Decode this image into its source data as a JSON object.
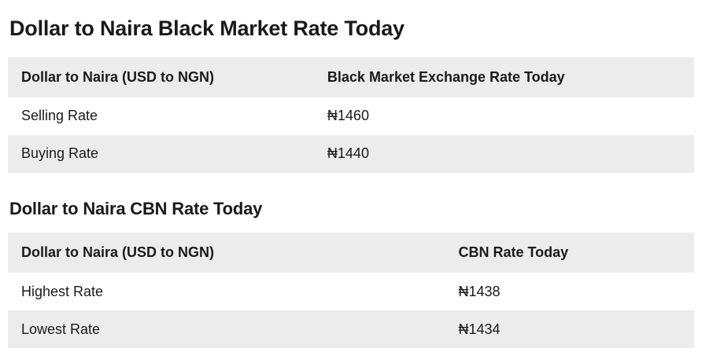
{
  "colors": {
    "row_alt_bg": "#ececec",
    "text": "#1a1a1a",
    "page_bg": "#ffffff"
  },
  "sections": [
    {
      "heading": "Dollar to Naira Black Market Rate Today",
      "table": {
        "headers": [
          "Dollar to Naira (USD to NGN)",
          "Black Market Exchange Rate Today"
        ],
        "rows": [
          {
            "label": "Selling Rate",
            "value": "₦1460"
          },
          {
            "label": "Buying Rate",
            "value": "₦1440"
          }
        ]
      }
    },
    {
      "heading": "Dollar to Naira CBN Rate Today",
      "table": {
        "headers": [
          "Dollar to Naira (USD to NGN)",
          "CBN Rate Today"
        ],
        "rows": [
          {
            "label": "Highest Rate",
            "value": "₦1438"
          },
          {
            "label": "Lowest Rate",
            "value": "₦1434"
          }
        ]
      }
    }
  ]
}
